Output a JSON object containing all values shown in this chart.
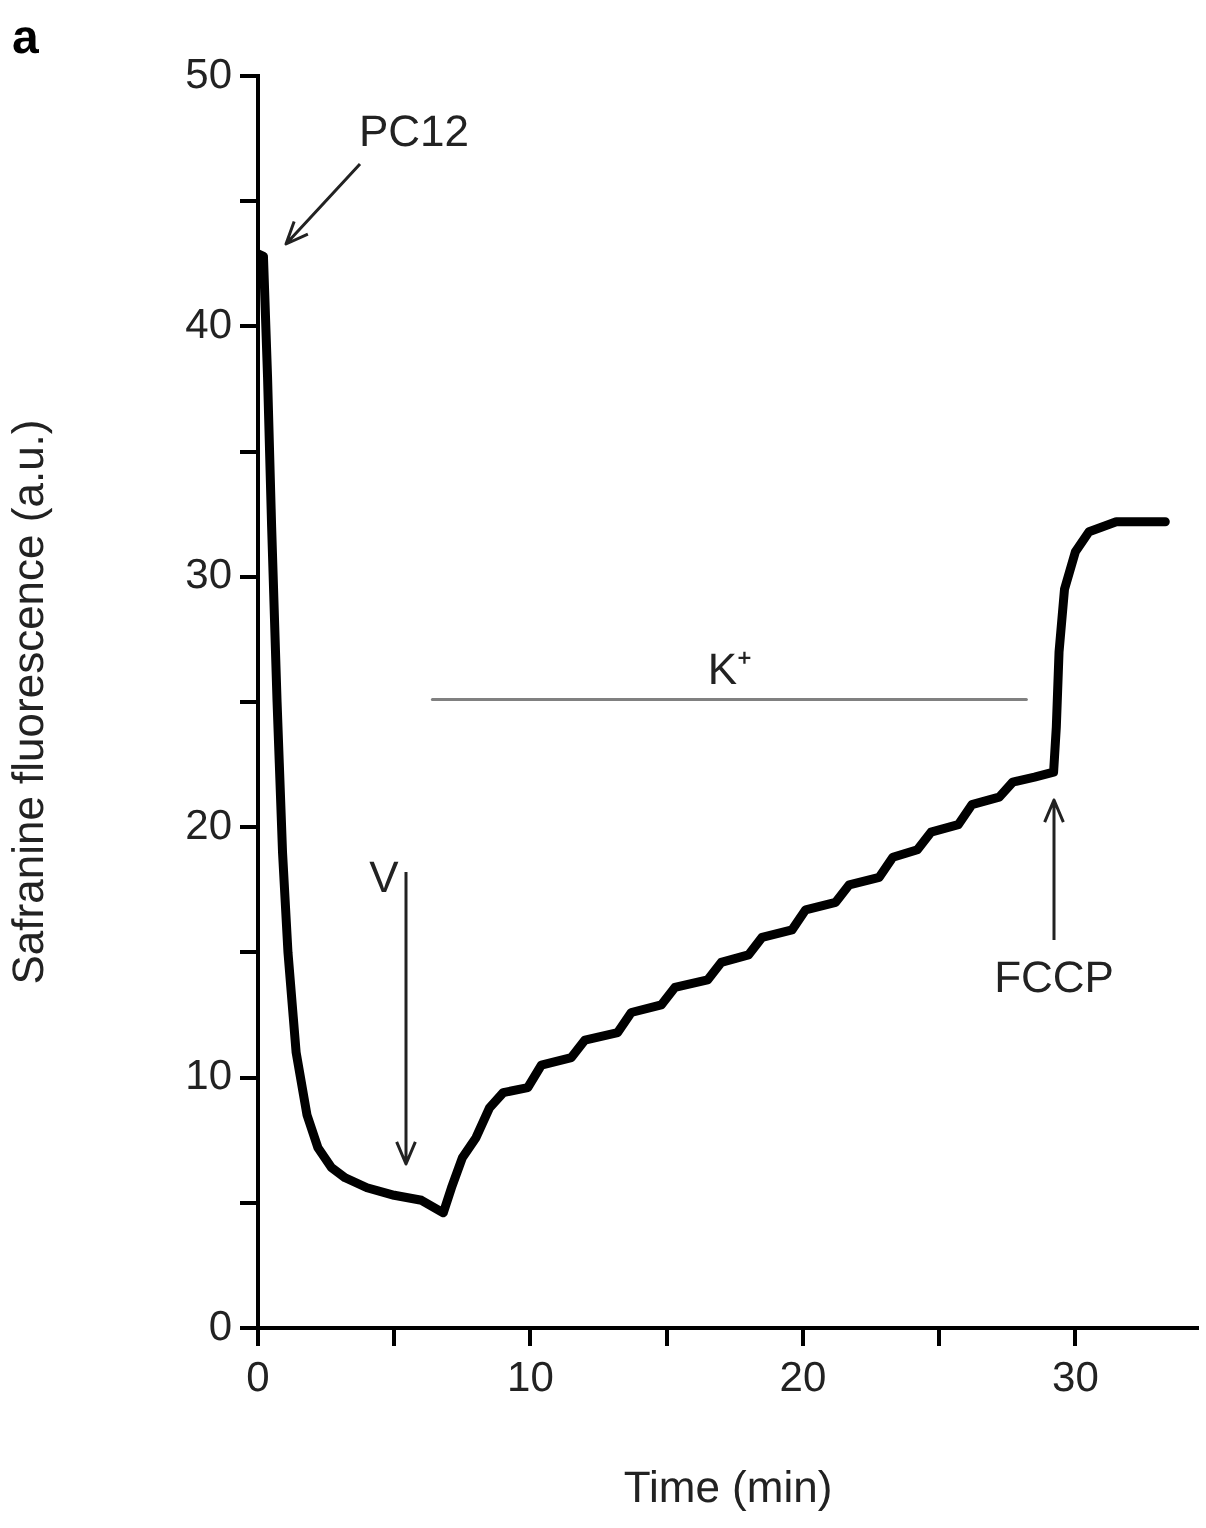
{
  "chart_data": {
    "type": "line",
    "xlabel": "Time (min)",
    "ylabel": "Safranine fluorescence (a.u.)",
    "xlim": [
      0,
      34.5
    ],
    "ylim": [
      0,
      50
    ],
    "xticks": [
      0,
      {
        "value": 5,
        "label": null
      },
      10,
      {
        "value": 15,
        "label": null
      },
      20,
      {
        "value": 25,
        "label": null
      },
      30
    ],
    "yticks": [
      0,
      {
        "value": 5,
        "label": null
      },
      10,
      {
        "value": 15,
        "label": null
      },
      20,
      {
        "value": 25,
        "label": null
      },
      30,
      {
        "value": 35,
        "label": null
      },
      40,
      {
        "value": 45,
        "label": null
      },
      50
    ],
    "grid": false,
    "legend": false,
    "marker": "none",
    "line_style": "solid",
    "series": [
      {
        "color": "#000000",
        "x": [
          0,
          0.2,
          0.35,
          0.5,
          0.7,
          0.9,
          1.1,
          1.4,
          1.8,
          2.2,
          2.7,
          3.2,
          4.0,
          5.0,
          6.0,
          6.8,
          7.1,
          7.5,
          8.0,
          8.5,
          9.0,
          9.9,
          10.4,
          11.5,
          12.0,
          13.2,
          13.7,
          14.8,
          15.3,
          16.5,
          17.0,
          18.0,
          18.5,
          19.6,
          20.1,
          21.2,
          21.7,
          22.8,
          23.3,
          24.2,
          24.7,
          25.7,
          26.2,
          27.2,
          27.7,
          28.5,
          29.2,
          29.3,
          29.4,
          29.6,
          30.0,
          30.5,
          31.5,
          33.3
        ],
        "values": [
          42.9,
          42.8,
          38,
          32,
          25,
          19,
          15,
          11,
          8.5,
          7.2,
          6.4,
          6.0,
          5.6,
          5.3,
          5.1,
          4.6,
          5.6,
          6.8,
          7.6,
          8.8,
          9.4,
          9.6,
          10.5,
          10.8,
          11.5,
          11.8,
          12.6,
          12.9,
          13.6,
          13.9,
          14.6,
          14.9,
          15.6,
          15.9,
          16.7,
          17.0,
          17.7,
          18.0,
          18.8,
          19.1,
          19.8,
          20.1,
          20.9,
          21.2,
          21.8,
          22.0,
          22.2,
          24,
          27,
          29.5,
          31.0,
          31.8,
          32.2,
          32.2
        ]
      },
      {
        "name": "K⁺",
        "color": "#808080",
        "x": [
          6.4,
          28.2
        ],
        "values": [
          25.1,
          25.1
        ]
      }
    ],
    "annotations": [
      "a",
      "PC12",
      "V",
      "FCCP"
    ]
  }
}
